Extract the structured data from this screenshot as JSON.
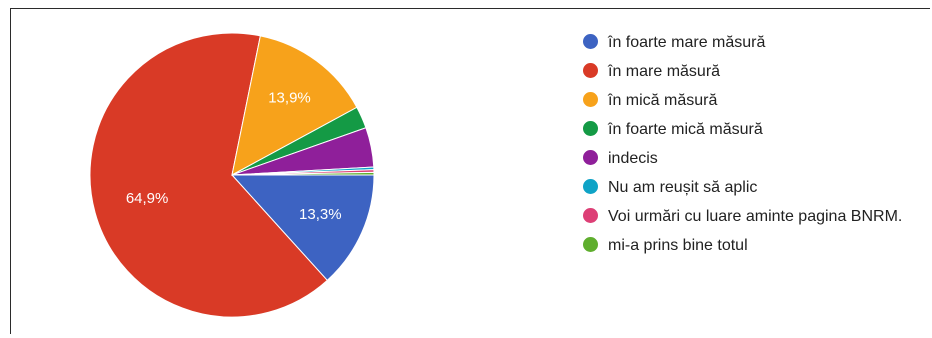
{
  "chart_data": {
    "type": "pie",
    "categories": [
      "în foarte mare măsură",
      "în mare măsură",
      "în mică măsură",
      "în foarte mică măsură",
      "indecis",
      "Nu am reușit să aplic",
      "Voi urmări cu luare aminte pagina BNRM.",
      "mi-a prins bine totul"
    ],
    "values": [
      13.3,
      64.9,
      13.9,
      2.5,
      4.5,
      0.3,
      0.3,
      0.3
    ],
    "value_labels": [
      "13,3%",
      "64,9%",
      "13,9%",
      "",
      "",
      "",
      "",
      ""
    ],
    "colors": [
      "#3d63c2",
      "#d93a26",
      "#f7a21b",
      "#149a45",
      "#8f1f9a",
      "#0fa3c6",
      "#dd3f76",
      "#5fae2e"
    ],
    "start_angle_deg": 0,
    "direction": "clockwise",
    "legend_position": "right"
  }
}
